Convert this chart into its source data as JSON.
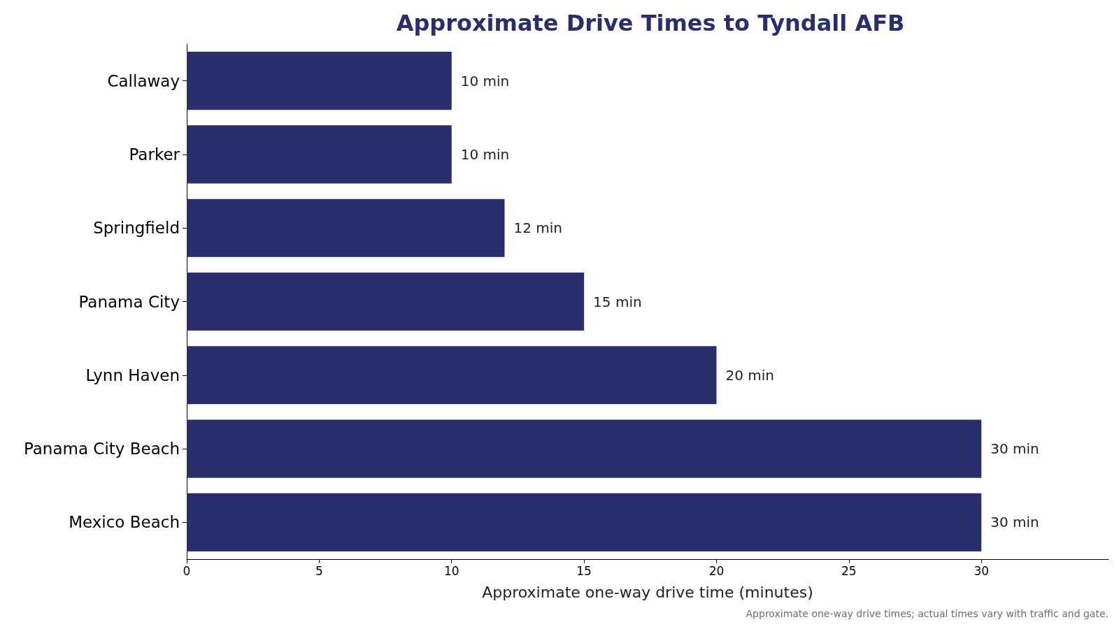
{
  "chart_data": {
    "type": "bar",
    "orientation": "horizontal",
    "title": "Approximate Drive Times to Tyndall AFB",
    "xlabel": "Approximate one-way drive time (minutes)",
    "categories": [
      "Callaway",
      "Parker",
      "Springfield",
      "Panama City",
      "Lynn Haven",
      "Panama City Beach",
      "Mexico Beach"
    ],
    "values": [
      10,
      10,
      12,
      15,
      20,
      30,
      30
    ],
    "value_labels": [
      "10 min",
      "10 min",
      "12 min",
      "15 min",
      "20 min",
      "30 min",
      "30 min"
    ],
    "color": "#2a2f6b",
    "xlim": [
      0,
      34.8
    ],
    "xticks": [
      0,
      5,
      10,
      15,
      20,
      25,
      30
    ],
    "grid": false,
    "annotations": [
      "Approximate one-way drive times; actual times vary with traffic and gate."
    ]
  }
}
